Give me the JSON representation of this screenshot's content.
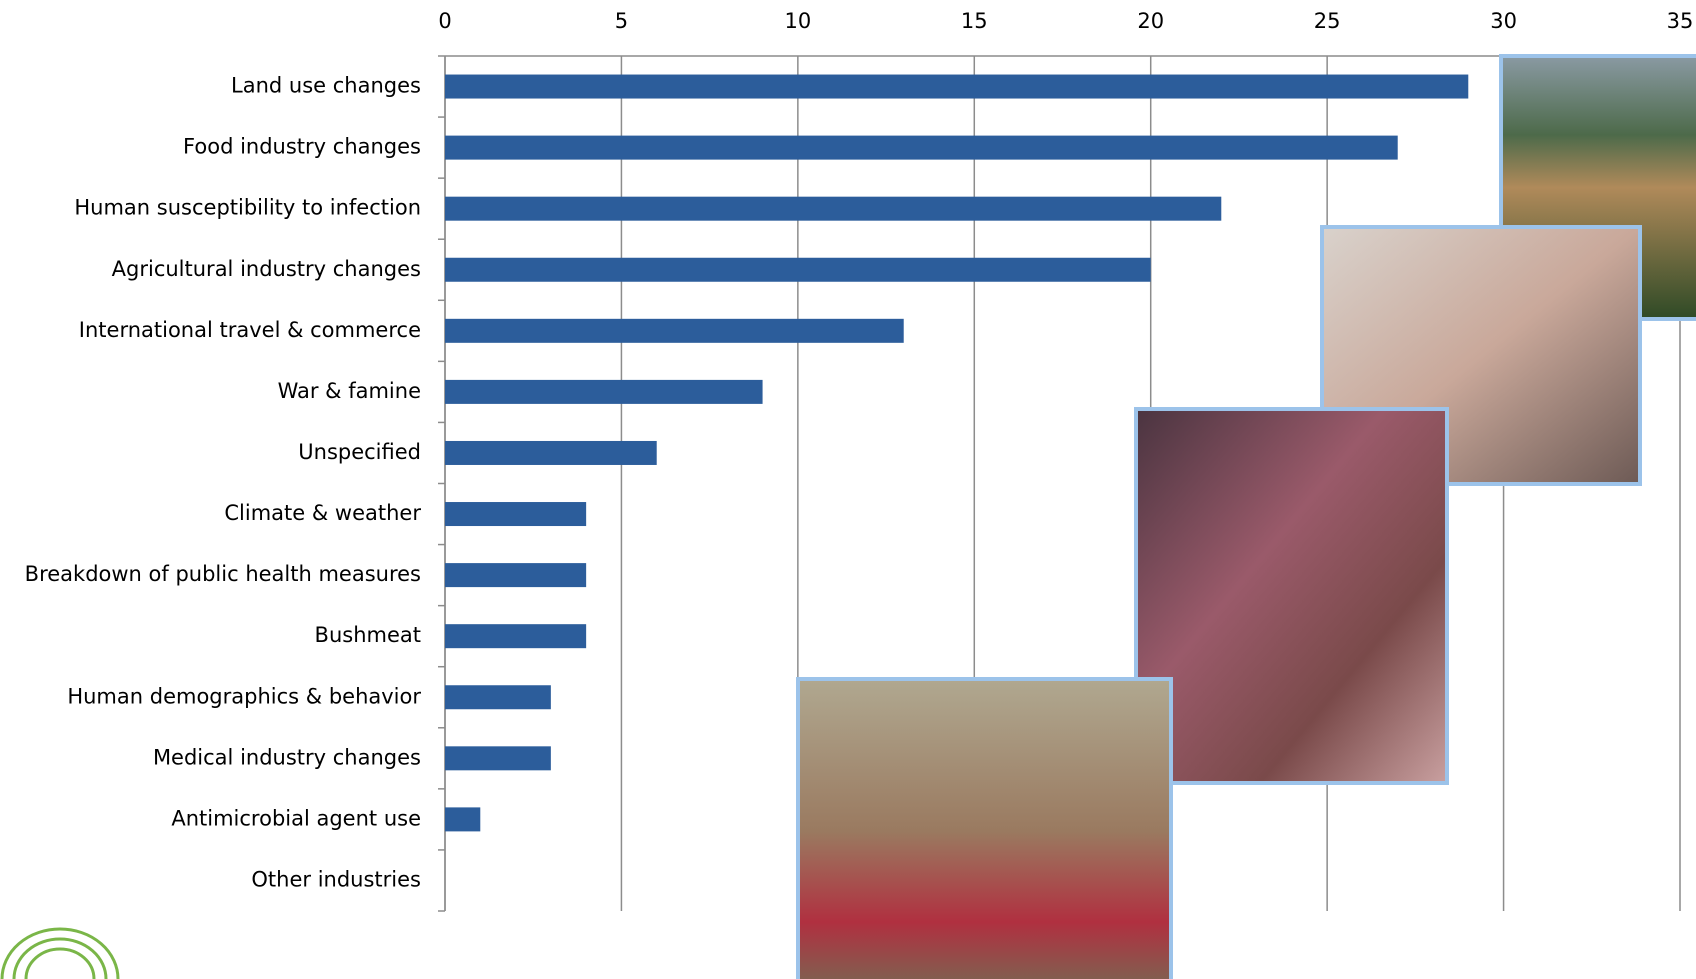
{
  "chart_data": {
    "type": "bar",
    "orientation": "horizontal",
    "categories": [
      "Land use changes",
      "Food industry changes",
      "Human susceptibility to infection",
      "Agricultural industry changes",
      "International travel & commerce",
      "War & famine",
      "Unspecified",
      "Climate & weather",
      "Breakdown of public health measures",
      "Bushmeat",
      "Human demographics & behavior",
      "Medical industry changes",
      "Antimicrobial agent use",
      "Other industries"
    ],
    "values": [
      29,
      27,
      22,
      20,
      13,
      9,
      6,
      4,
      4,
      4,
      3,
      3,
      1,
      0
    ],
    "color": "#2c5d9b",
    "xlim": [
      0,
      35
    ],
    "xticks": [
      0,
      5,
      10,
      15,
      20,
      25,
      30,
      35
    ],
    "grid": true
  }
}
